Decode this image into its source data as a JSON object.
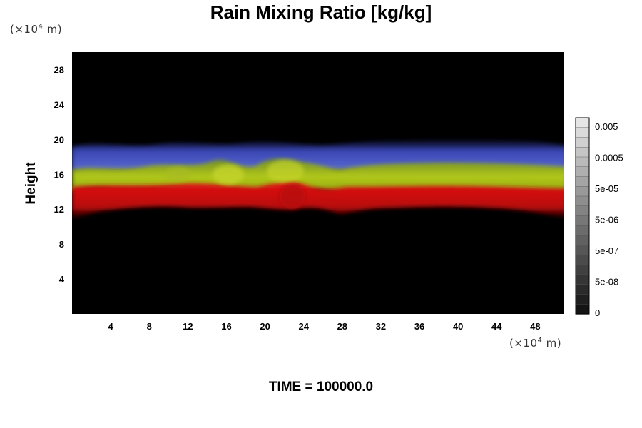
{
  "chart_data": {
    "type": "heatmap",
    "title": "Rain Mixing Ratio [kg/kg]",
    "ylabel": "Height",
    "xlabel": "",
    "x_unit": "(×10⁴ m)",
    "y_unit": "(×10⁴ m)",
    "x_ticks": [
      4,
      8,
      12,
      16,
      20,
      24,
      28,
      32,
      36,
      40,
      44,
      48
    ],
    "y_ticks": [
      4,
      8,
      12,
      16,
      20,
      24,
      28
    ],
    "xlim": [
      0,
      51
    ],
    "ylim": [
      0,
      30
    ],
    "colorbar": {
      "labels": [
        "0.005",
        "0.0005",
        "5e-05",
        "5e-06",
        "5e-07",
        "5e-08",
        "0"
      ],
      "levels": 20
    },
    "bands": [
      {
        "color": "#c81010",
        "y_range": [
          11,
          14
        ]
      },
      {
        "color": "#9cb414",
        "y_range": [
          14,
          17
        ]
      },
      {
        "color": "#4050c8",
        "y_range": [
          17,
          20
        ]
      }
    ],
    "background_color": "#000000",
    "grid": false
  },
  "footer": {
    "time_label": "TIME = 100000.0"
  },
  "units": {
    "y_prefix": "(×10",
    "y_exp": "4",
    "y_suffix": " m)",
    "x_prefix": "(×10",
    "x_exp": "4",
    "x_suffix": " m)"
  }
}
